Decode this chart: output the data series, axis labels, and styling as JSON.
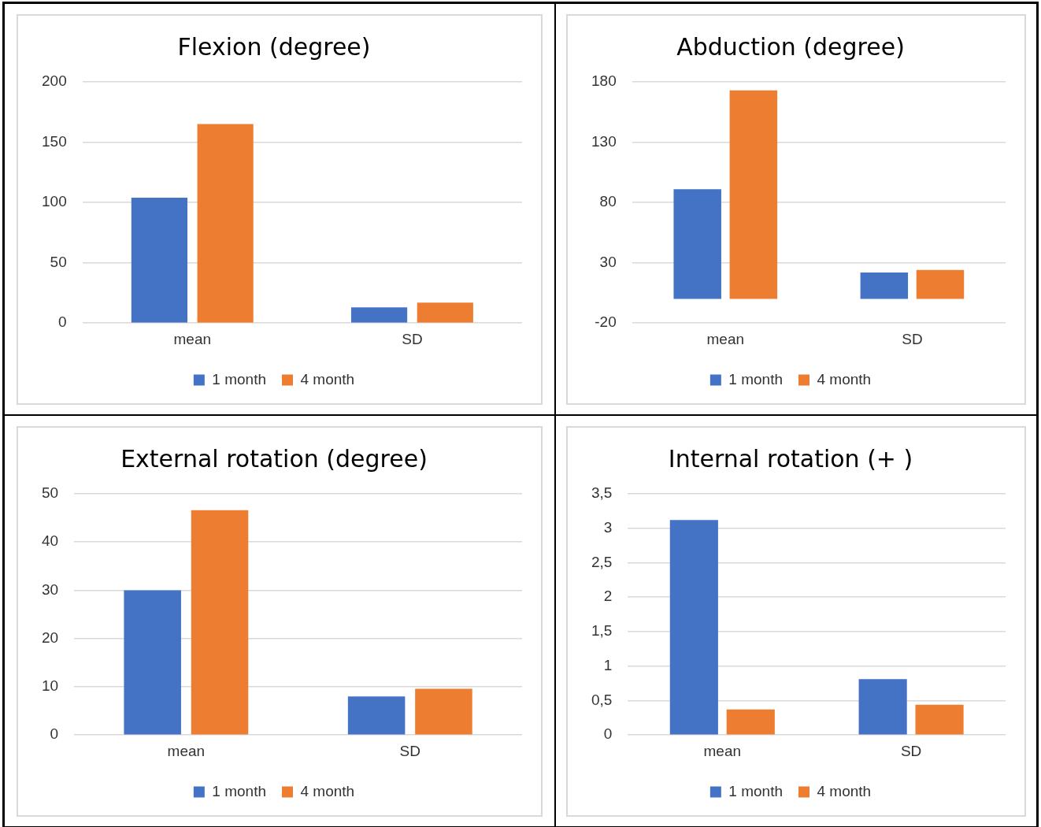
{
  "chart_data": [
    {
      "type": "bar",
      "title": "Flexion (degree)",
      "categories": [
        "mean",
        "SD"
      ],
      "series": [
        {
          "name": "1 month",
          "color": "#4472c4",
          "values": [
            104,
            13
          ]
        },
        {
          "name": "4 month",
          "color": "#ed7d31",
          "values": [
            165,
            17
          ]
        }
      ],
      "ylim": [
        0,
        200
      ],
      "yticks": [
        0,
        50,
        100,
        150,
        200
      ],
      "grid": "y",
      "legend": "bottom"
    },
    {
      "type": "bar",
      "title": "Abduction (degree)",
      "categories": [
        "mean",
        "SD"
      ],
      "series": [
        {
          "name": "1 month",
          "color": "#4472c4",
          "values": [
            91,
            22
          ]
        },
        {
          "name": "4 month",
          "color": "#ed7d31",
          "values": [
            173,
            24
          ]
        }
      ],
      "ylim": [
        -20,
        180
      ],
      "yticks": [
        -20,
        30,
        80,
        130,
        180
      ],
      "grid": "y",
      "legend": "bottom"
    },
    {
      "type": "bar",
      "title": "External rotation (degree)",
      "categories": [
        "mean",
        "SD"
      ],
      "series": [
        {
          "name": "1 month",
          "color": "#4472c4",
          "values": [
            30,
            8
          ]
        },
        {
          "name": "4 month",
          "color": "#ed7d31",
          "values": [
            46.6,
            9.6
          ]
        }
      ],
      "ylim": [
        0,
        50
      ],
      "yticks": [
        0,
        10,
        20,
        30,
        40,
        50
      ],
      "grid": "y",
      "legend": "bottom"
    },
    {
      "type": "bar",
      "title": "Internal rotation (+ )",
      "categories": [
        "mean",
        "SD"
      ],
      "series": [
        {
          "name": "1 month",
          "color": "#4472c4",
          "values": [
            3.12,
            0.81
          ]
        },
        {
          "name": "4 month",
          "color": "#ed7d31",
          "values": [
            0.37,
            0.44
          ]
        }
      ],
      "ylim": [
        0,
        3.5
      ],
      "yticks": [
        0,
        {
          "value": 0.5,
          "label": "0,5"
        },
        1,
        {
          "value": 1.5,
          "label": "1,5"
        },
        2,
        {
          "value": 2.5,
          "label": "2,5"
        },
        3,
        {
          "value": 3.5,
          "label": "3,5"
        }
      ],
      "grid": "y",
      "legend": "bottom"
    }
  ]
}
